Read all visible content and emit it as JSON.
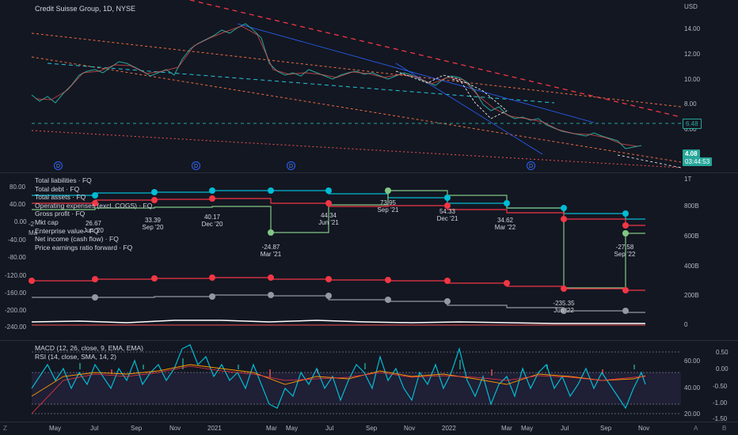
{
  "header": {
    "symbol_title": "Credit Suisse Group, 1D, NYSE"
  },
  "price_axis": {
    "currency": "USD",
    "ticks": [
      "14.00",
      "12.00",
      "10.00",
      "8.00",
      "6.00"
    ],
    "badge_alert": "6.48",
    "badge_price": "4.08",
    "badge_countdown": "03:44:53",
    "alert_color": "#26a69a",
    "price_color": "#26a69a"
  },
  "dividend_markers": [
    "D",
    "D",
    "D",
    "D"
  ],
  "financials": {
    "legend": [
      "Total liabilities · FQ",
      "Total debt · FQ",
      "Total assets · FQ",
      "Operating expenses (excl. COGS) · FQ",
      "Gross profit · FQ",
      "Mkt cap",
      "Enterprise value · FQ",
      "Net income (cash flow) · FQ",
      "Price earnings ratio forward · FQ"
    ],
    "left_ticks": [
      "80.00",
      "40.00",
      "0.00",
      "-40.00",
      "-80.00",
      "-120.00",
      "-160.00",
      "-200.00",
      "-240.00"
    ],
    "right_ticks": [
      "1T",
      "800B",
      "600B",
      "400B",
      "200B",
      "0"
    ],
    "left_stub_labels": [
      "-2",
      "Ma"
    ],
    "point_labels": [
      {
        "value": "26.67",
        "date": "Jun '20"
      },
      {
        "value": "33.39",
        "date": "Sep '20"
      },
      {
        "value": "40.17",
        "date": "Dec '20"
      },
      {
        "value": "-24.87",
        "date": "Mar '21"
      },
      {
        "value": "44.34",
        "date": "Jun '21"
      },
      {
        "value": "73.95",
        "date": "Sep '21"
      },
      {
        "value": "54.33",
        "date": "Dec '21"
      },
      {
        "value": "34.62",
        "date": "Mar '22"
      },
      {
        "value": "-235.35",
        "date": "Jun '22"
      },
      {
        "value": "-27.58",
        "date": "Sep '22"
      }
    ],
    "colors": {
      "assets": "#00bcd4",
      "liabilities": "#f23645",
      "gross": "#81c784",
      "net": "#ef5350",
      "debt": "#787b86"
    }
  },
  "oscillators": {
    "legend": [
      "MACD (12, 26, close, 9, EMA, EMA)",
      "RSI (14, close, SMA, 14, 2)"
    ],
    "macd_ticks": [
      "0.50",
      "0.00",
      "-0.50",
      "-1.00",
      "-1.50"
    ],
    "rsi_ticks": [
      "60.00",
      "40.00",
      "20.00"
    ]
  },
  "time_axis": {
    "labels": [
      "May",
      "Jul",
      "Sep",
      "Nov",
      "2021",
      "Mar",
      "May",
      "Jul",
      "Sep",
      "Nov",
      "2022",
      "Mar",
      "May",
      "Jul",
      "Sep",
      "Nov"
    ],
    "left_button": "Z",
    "right_buttons": [
      "A",
      "B"
    ]
  }
}
